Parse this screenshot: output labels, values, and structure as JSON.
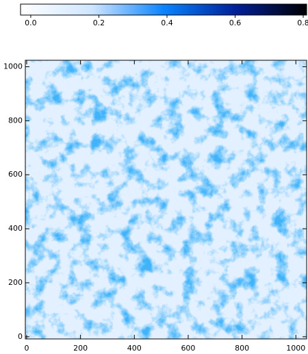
{
  "chart_data": {
    "type": "heatmap",
    "colorbar": {
      "lim": [
        -0.03,
        0.81
      ],
      "ticks": [
        {
          "value": 0,
          "label": "0.0"
        },
        0.2,
        0.4,
        0.6,
        0.8
      ],
      "colormap": [
        "#ffffff",
        "#cfe6ff",
        "#0a84ff",
        "#00209a",
        "#000000"
      ]
    },
    "xlim": [
      -5,
      1040
    ],
    "ylim": [
      -8,
      1024
    ],
    "xticks": [
      0,
      200,
      400,
      600,
      800,
      1000
    ],
    "yticks": [
      0,
      200,
      400,
      600,
      800,
      1000
    ]
  }
}
